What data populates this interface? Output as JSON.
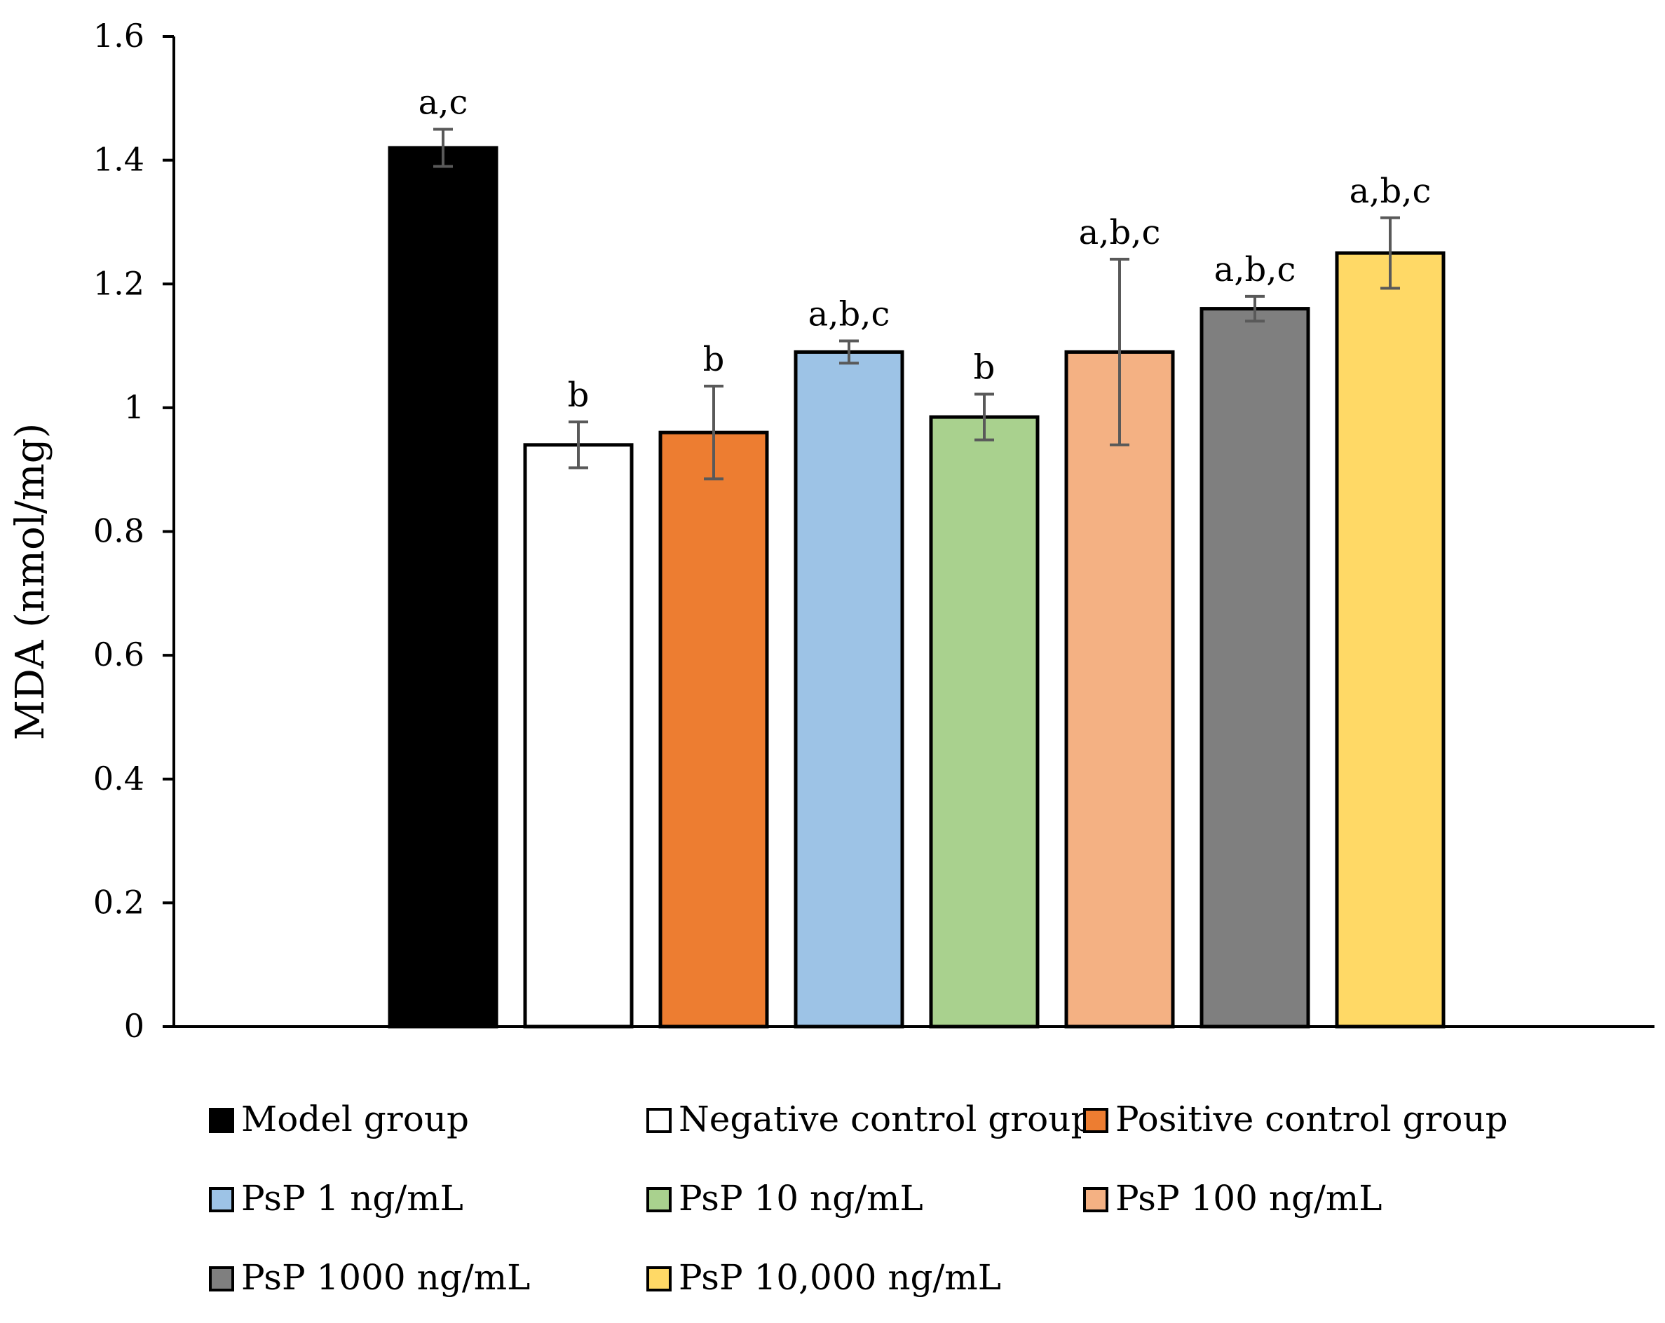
{
  "chart_data": {
    "type": "bar",
    "title": "",
    "xlabel": "",
    "ylabel": "MDA (nmol/mg)",
    "ylim": [
      0,
      1.6
    ],
    "yticks": [
      "0",
      "0.2",
      "0.4",
      "0.6",
      "0.8",
      "1",
      "1.2",
      "1.4",
      "1.6"
    ],
    "ytick_values": [
      0,
      0.2,
      0.4,
      0.6,
      0.8,
      1.0,
      1.2,
      1.4,
      1.6
    ],
    "grid": false,
    "legend_position": "bottom",
    "series": [
      {
        "name": "Model group",
        "value": 1.42,
        "error": 0.03,
        "significance": "a,c",
        "color": "#000000"
      },
      {
        "name": "Negative control group",
        "value": 0.94,
        "error": 0.037,
        "significance": "b",
        "color": "#ffffff"
      },
      {
        "name": "Positive control group",
        "value": 0.96,
        "error": 0.075,
        "significance": "b",
        "color": "#ed7d31"
      },
      {
        "name": "PsP 1 ng/mL",
        "value": 1.09,
        "error": 0.018,
        "significance": "a,b,c",
        "color": "#9dc3e6"
      },
      {
        "name": "PsP 10 ng/mL",
        "value": 0.985,
        "error": 0.037,
        "significance": "b",
        "color": "#a9d18e"
      },
      {
        "name": "PsP 100 ng/mL",
        "value": 1.09,
        "error": 0.15,
        "significance": "a,b,c",
        "color": "#f4b183"
      },
      {
        "name": "PsP 1000 ng/mL",
        "value": 1.16,
        "error": 0.02,
        "significance": "a,b,c",
        "color": "#7f7f7f"
      },
      {
        "name": "PsP 10,000 ng/mL",
        "value": 1.25,
        "error": 0.057,
        "significance": "a,b,c",
        "color": "#ffd966"
      }
    ]
  }
}
